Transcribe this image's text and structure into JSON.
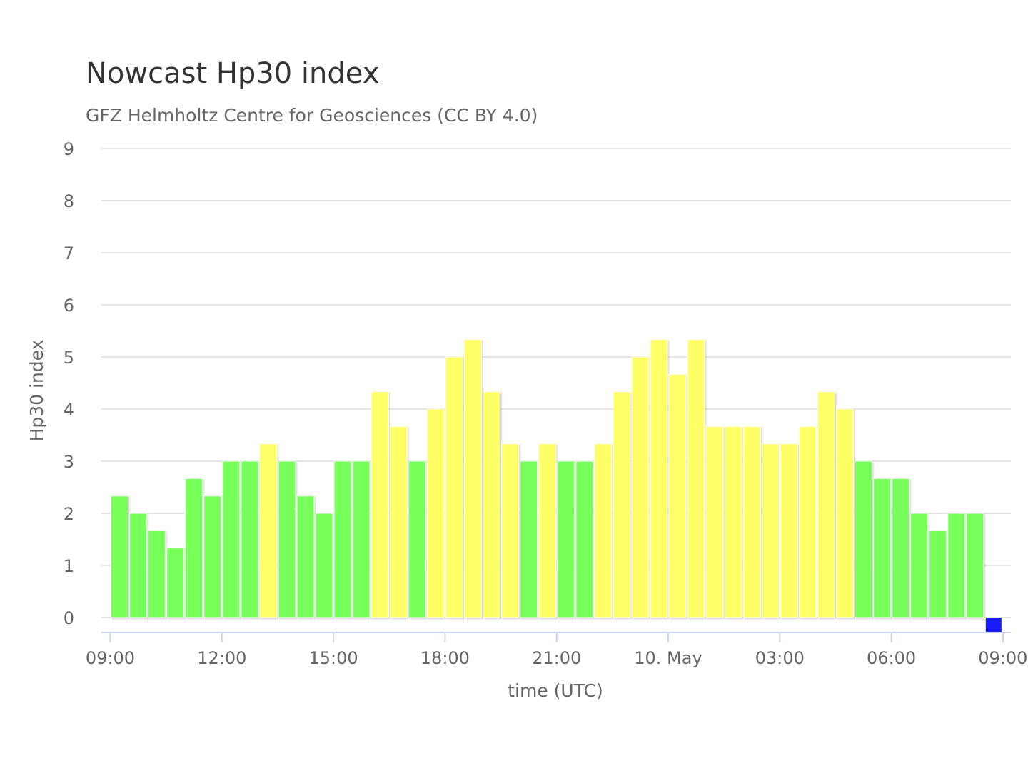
{
  "chart_data": {
    "type": "bar",
    "title": "Nowcast Hp30 index",
    "subtitle": "GFZ Helmholtz Centre for Geosciences (CC BY 4.0)",
    "xlabel": "time (UTC)",
    "ylabel": "Hp30 index",
    "ylim": [
      0,
      9
    ],
    "yticks": [
      "0",
      "1",
      "2",
      "3",
      "4",
      "5",
      "6",
      "7",
      "8",
      "9"
    ],
    "xticks": [
      "09:00",
      "12:00",
      "15:00",
      "18:00",
      "21:00",
      "10. May",
      "03:00",
      "06:00",
      "09:00"
    ],
    "interval": "30 minutes",
    "first_bar": "09:00",
    "grid": true,
    "legend": "none",
    "colors": {
      "green": "#77ff5a",
      "yellow": "#ffff66",
      "blue": "#1a1aff",
      "grid": "#e6e6e6",
      "axis": "#ccd6eb"
    },
    "values": [
      2.333,
      2.0,
      1.667,
      1.333,
      2.667,
      2.333,
      3.0,
      3.0,
      3.333,
      3.0,
      2.333,
      2.0,
      3.0,
      3.0,
      4.333,
      3.667,
      3.0,
      4.0,
      5.0,
      5.333,
      4.333,
      3.333,
      3.0,
      3.333,
      3.0,
      3.0,
      3.333,
      4.333,
      5.0,
      5.333,
      4.667,
      5.333,
      3.667,
      3.667,
      3.667,
      3.333,
      3.333,
      3.667,
      4.333,
      4.0,
      3.0,
      2.667,
      2.667,
      2.0,
      1.667,
      2.0,
      2.0,
      0.0
    ],
    "bar_colors": [
      "green",
      "green",
      "green",
      "green",
      "green",
      "green",
      "green",
      "green",
      "yellow",
      "green",
      "green",
      "green",
      "green",
      "green",
      "yellow",
      "yellow",
      "green",
      "yellow",
      "yellow",
      "yellow",
      "yellow",
      "yellow",
      "green",
      "yellow",
      "green",
      "green",
      "yellow",
      "yellow",
      "yellow",
      "yellow",
      "yellow",
      "yellow",
      "yellow",
      "yellow",
      "yellow",
      "yellow",
      "yellow",
      "yellow",
      "yellow",
      "yellow",
      "green",
      "green",
      "green",
      "green",
      "green",
      "green",
      "green",
      "blue"
    ]
  }
}
